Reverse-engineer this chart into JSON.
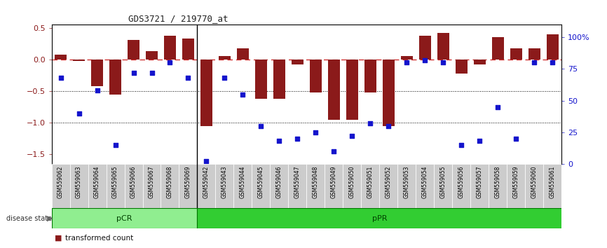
{
  "title": "GDS3721 / 219770_at",
  "samples": [
    "GSM559062",
    "GSM559063",
    "GSM559064",
    "GSM559065",
    "GSM559066",
    "GSM559067",
    "GSM559068",
    "GSM559069",
    "GSM559042",
    "GSM559043",
    "GSM559044",
    "GSM559045",
    "GSM559046",
    "GSM559047",
    "GSM559048",
    "GSM559049",
    "GSM559050",
    "GSM559051",
    "GSM559052",
    "GSM559053",
    "GSM559054",
    "GSM559055",
    "GSM559056",
    "GSM559057",
    "GSM559058",
    "GSM559059",
    "GSM559060",
    "GSM559061"
  ],
  "bar_values": [
    0.08,
    -0.02,
    -0.42,
    -0.55,
    0.31,
    0.13,
    0.38,
    0.33,
    -1.05,
    0.05,
    0.18,
    -0.62,
    -0.62,
    -0.08,
    -0.52,
    -0.95,
    -0.95,
    -0.52,
    -1.05,
    0.05,
    0.38,
    0.42,
    -0.22,
    -0.08,
    0.35,
    0.18,
    0.18,
    0.4
  ],
  "dot_pct": [
    68,
    40,
    58,
    15,
    72,
    72,
    80,
    68,
    2,
    68,
    55,
    30,
    18,
    20,
    25,
    10,
    22,
    32,
    30,
    80,
    82,
    80,
    15,
    18,
    45,
    20,
    80,
    80
  ],
  "pcr_count": 8,
  "ylim_left": [
    -1.65,
    0.55
  ],
  "ylim_right": [
    0,
    110
  ],
  "yticks_left": [
    0.5,
    0.0,
    -0.5,
    -1.0,
    -1.5
  ],
  "yticks_right": [
    0,
    25,
    50,
    75,
    100
  ],
  "bar_color": "#8B1A1A",
  "dot_color": "#1414CC",
  "pcr_color": "#90EE90",
  "ppr_color": "#32CD32",
  "zero_line_color": "#CC2222",
  "dotted_line_color": "#000000",
  "label_bg_color": "#cccccc",
  "plot_bg_color": "#ffffff"
}
